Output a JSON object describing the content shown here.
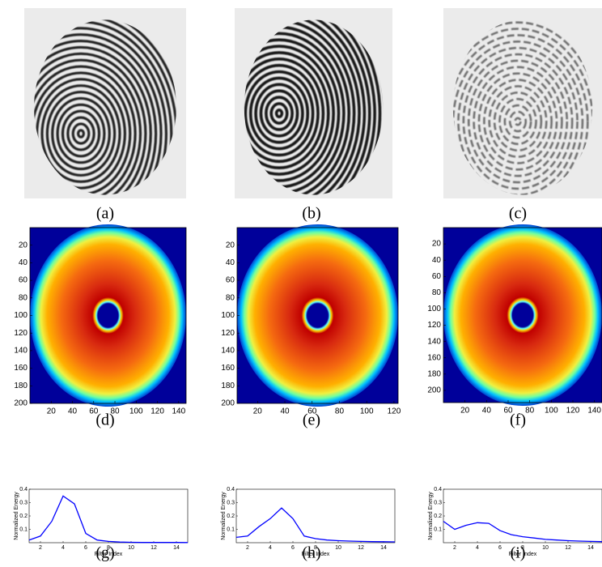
{
  "figure": {
    "captions": [
      "(a)",
      "(b)",
      "(c)",
      "(d)",
      "(e)",
      "(f)",
      "(g)",
      "(h)",
      "(i)"
    ],
    "spectra": [
      {
        "xlim": [
          0,
          147
        ],
        "ylim": [
          0,
          200
        ],
        "xticks": [
          20,
          40,
          60,
          80,
          100,
          120,
          140
        ],
        "yticks": [
          20,
          40,
          60,
          80,
          100,
          120,
          140,
          160,
          180,
          200
        ]
      },
      {
        "xlim": [
          5,
          123
        ],
        "ylim": [
          0,
          200
        ],
        "xticks": [
          20,
          40,
          60,
          80,
          100,
          120
        ],
        "yticks": [
          20,
          40,
          60,
          80,
          100,
          120,
          140,
          160,
          180,
          200
        ]
      },
      {
        "xlim": [
          0,
          147
        ],
        "ylim": [
          0,
          215
        ],
        "xticks": [
          20,
          40,
          60,
          80,
          100,
          120,
          140
        ],
        "yticks": [
          20,
          40,
          60,
          80,
          100,
          120,
          140,
          160,
          180,
          200
        ]
      }
    ],
    "energy": {
      "ylabel": "Normalized Energy",
      "xlabel": "Filter Index",
      "color": "#0000ff",
      "xlim": [
        1,
        15
      ],
      "ylim": [
        0,
        0.4
      ],
      "xticks": [
        2,
        4,
        6,
        8,
        10,
        12,
        14
      ],
      "yticks": [
        0.1,
        0.2,
        0.3,
        0.4
      ],
      "x": [
        1,
        2,
        3,
        4,
        5,
        6,
        7,
        8,
        9,
        10,
        11,
        12,
        13,
        14,
        15
      ],
      "series": [
        {
          "values": [
            0.02,
            0.05,
            0.16,
            0.35,
            0.29,
            0.07,
            0.02,
            0.01,
            0.005,
            0.003,
            0.002,
            0.002,
            0.002,
            0.002,
            0.001
          ]
        },
        {
          "values": [
            0.04,
            0.05,
            0.12,
            0.18,
            0.26,
            0.18,
            0.05,
            0.03,
            0.02,
            0.015,
            0.012,
            0.01,
            0.008,
            0.007,
            0.006
          ]
        },
        {
          "values": [
            0.16,
            0.1,
            0.13,
            0.15,
            0.145,
            0.09,
            0.06,
            0.045,
            0.035,
            0.025,
            0.02,
            0.015,
            0.012,
            0.01,
            0.008
          ]
        }
      ]
    }
  }
}
